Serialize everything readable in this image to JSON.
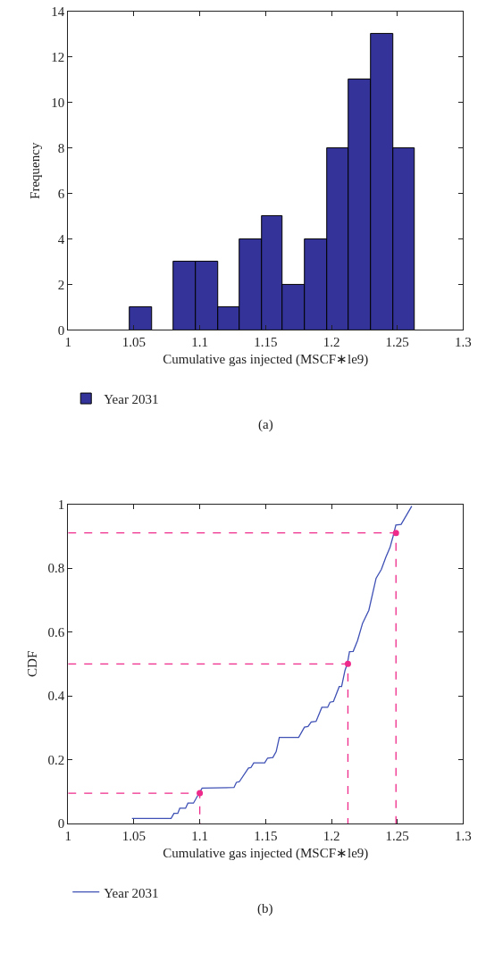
{
  "chart_data": [
    {
      "type": "histogram",
      "xlabel": "Cumulative gas injected (MSCF∗le9)",
      "ylabel": "Frequency",
      "xlim": [
        1,
        1.3
      ],
      "xticks": [
        1,
        1.05,
        1.1,
        1.15,
        1.2,
        1.25,
        1.3
      ],
      "ylim": [
        0,
        14
      ],
      "yticks": [
        0,
        2,
        4,
        6,
        8,
        10,
        12,
        14
      ],
      "legend": "bottom left",
      "annotations": [
        "(a)"
      ],
      "bins": [
        1.047,
        1.064,
        1.08,
        1.097,
        1.114,
        1.13,
        1.147,
        1.163,
        1.18,
        1.197,
        1.213,
        1.23,
        1.247,
        1.263
      ],
      "series": [
        {
          "name": "Year 2031",
          "color": "#333399",
          "values": [
            1,
            0,
            3,
            3,
            1,
            4,
            5,
            2,
            4,
            8,
            11,
            13,
            8
          ]
        }
      ]
    },
    {
      "type": "line",
      "xlabel": "Cumulative gas injected (MSCF∗le9)",
      "ylabel": "CDF",
      "xlim": [
        1,
        1.3
      ],
      "xticks": [
        1,
        1.05,
        1.1,
        1.15,
        1.2,
        1.25,
        1.3
      ],
      "ylim": [
        0,
        1
      ],
      "yticks": [
        0,
        0.2,
        0.4,
        0.6,
        0.8,
        1
      ],
      "legend": "bottom left",
      "marker": "none",
      "annotations": [
        "(b)"
      ],
      "series": [
        {
          "name": "Year 2031",
          "color": "#3f51b5",
          "line_style": "solid",
          "x": [
            1.0485,
            1.0782,
            1.0804,
            1.0833,
            1.0848,
            1.0892,
            1.091,
            1.0952,
            1.0996,
            1.1018,
            1.126,
            1.1278,
            1.13,
            1.137,
            1.1388,
            1.141,
            1.1493,
            1.1515,
            1.1555,
            1.158,
            1.1604,
            1.1751,
            1.1795,
            1.1822,
            1.1846,
            1.1883,
            1.1927,
            1.1971,
            1.1989,
            1.2015,
            1.2059,
            1.2077,
            1.2103,
            1.2121,
            1.2137,
            1.2165,
            1.2198,
            1.2236,
            1.2284,
            1.2339,
            1.2379,
            1.2412,
            1.2445,
            1.2467,
            1.2489,
            1.2529,
            1.261
          ],
          "values": [
            0.016,
            0.016,
            0.032,
            0.032,
            0.048,
            0.048,
            0.064,
            0.064,
            0.096,
            0.111,
            0.113,
            0.129,
            0.131,
            0.174,
            0.175,
            0.19,
            0.19,
            0.205,
            0.207,
            0.225,
            0.27,
            0.27,
            0.302,
            0.304,
            0.318,
            0.32,
            0.364,
            0.364,
            0.38,
            0.382,
            0.429,
            0.429,
            0.48,
            0.501,
            0.538,
            0.539,
            0.573,
            0.627,
            0.668,
            0.768,
            0.796,
            0.833,
            0.865,
            0.898,
            0.935,
            0.937,
            0.994
          ]
        },
        {
          "type": "line",
          "color": "#ee2a8a",
          "line_style": "dashed",
          "x": [
            1,
            1.1,
            1.1
          ],
          "values": [
            0.095,
            0.095,
            0
          ]
        },
        {
          "type": "line",
          "color": "#ee2a8a",
          "line_style": "dashed",
          "x": [
            1,
            1.2125,
            1.2125
          ],
          "values": [
            0.5,
            0.5,
            0
          ]
        },
        {
          "type": "line",
          "color": "#ee2a8a",
          "line_style": "dashed",
          "x": [
            1,
            1.249,
            1.249
          ],
          "values": [
            0.91,
            0.91,
            0
          ]
        },
        {
          "type": "scatter",
          "color": "#ee2a8a",
          "marker": "circle",
          "x": [
            1.1,
            1.2125,
            1.249
          ],
          "values": [
            0.095,
            0.5,
            0.91
          ]
        }
      ]
    }
  ]
}
